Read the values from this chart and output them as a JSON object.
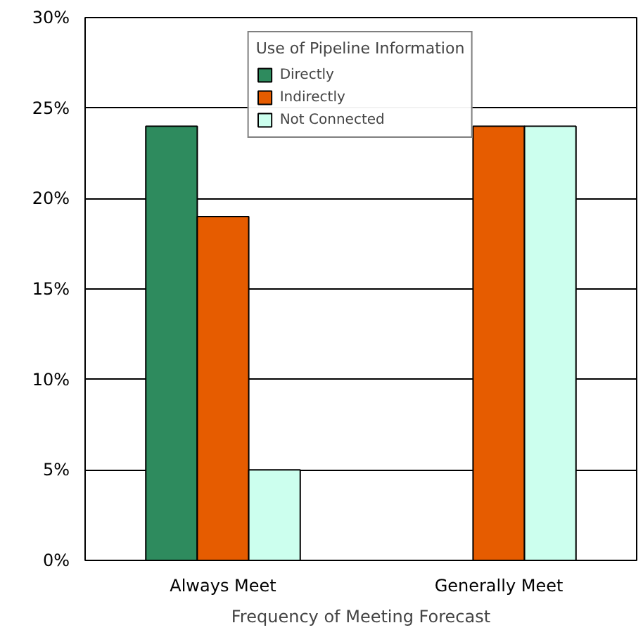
{
  "chart_data": {
    "type": "bar",
    "xlabel": "Frequency of Meeting Forecast",
    "legend_title": "Use of Pipeline Information",
    "categories": [
      "Always Meet",
      "Generally Meet"
    ],
    "series": [
      {
        "name": "Directly",
        "color": "#2e8b5e",
        "values": [
          24,
          null
        ]
      },
      {
        "name": "Indirectly",
        "color": "#e65c00",
        "values": [
          19,
          24
        ]
      },
      {
        "name": "Not Connected",
        "color": "#ccffee",
        "values": [
          5,
          24
        ]
      }
    ],
    "ylim": [
      0,
      30
    ],
    "yticks": [
      {
        "value": 0,
        "label": "0%"
      },
      {
        "value": 5,
        "label": "5%"
      },
      {
        "value": 10,
        "label": "10%"
      },
      {
        "value": 15,
        "label": "15%"
      },
      {
        "value": 20,
        "label": "20%"
      },
      {
        "value": 25,
        "label": "25%"
      },
      {
        "value": 30,
        "label": "30%"
      }
    ],
    "grid": "y",
    "legend": "top"
  }
}
